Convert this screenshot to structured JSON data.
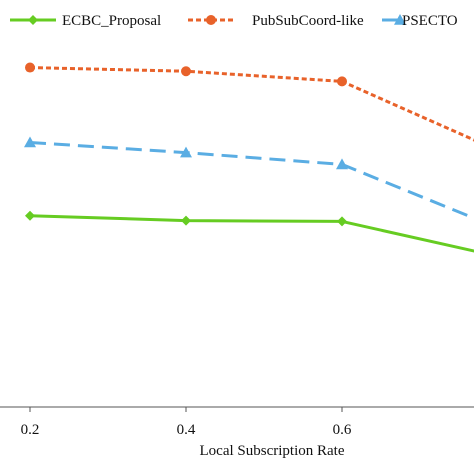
{
  "chart_data": {
    "type": "line",
    "xlabel": "Local Subscription Rate",
    "ylabel": "",
    "title": "",
    "x": [
      0.2,
      0.4,
      0.6,
      0.8
    ],
    "x_tick_labels": [
      "0.2",
      "0.4",
      "0.6"
    ],
    "xlim": [
      0.2,
      0.8
    ],
    "ylim": [
      0,
      100
    ],
    "y_ticks_visible": false,
    "grid": false,
    "legend_placement": "top",
    "series": [
      {
        "name": "ECBC_Proposal",
        "values": [
          47,
          45.8,
          45.6,
          37
        ],
        "color": "#66cc22",
        "marker": "diamond",
        "dash": "solid"
      },
      {
        "name": "PubSubCoord-like",
        "values": [
          83.4,
          82.5,
          80,
          63
        ],
        "color": "#e8622a",
        "marker": "circle",
        "dash": "dotted"
      },
      {
        "name": "PSECTO",
        "values": [
          65,
          62.5,
          59.6,
          44
        ],
        "color": "#5aade3",
        "marker": "triangle",
        "dash": "dashed"
      }
    ]
  }
}
